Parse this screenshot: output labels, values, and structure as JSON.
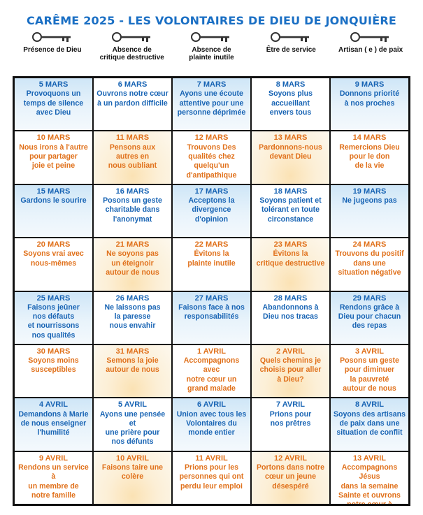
{
  "title": "CARÊME 2025 - LES VOLONTAIRES DE DIEU DE JONQUIÈRE",
  "columns": [
    {
      "label": "Présence de Dieu"
    },
    {
      "label": "Absence de\ncritique destructive"
    },
    {
      "label": "Absence de\nplainte inutile"
    },
    {
      "label": "Être  de service"
    },
    {
      "label": "Artisan ( e ) de paix"
    }
  ],
  "rows": [
    [
      {
        "date": "5 MARS",
        "text": "Provoquons un\ntemps de silence\navec Dieu"
      },
      {
        "date": "6 MARS",
        "text": "Ouvrons notre cœur\nà un pardon difficile"
      },
      {
        "date": "7 MARS",
        "text": "Ayons une écoute\nattentive pour une\npersonne déprimée"
      },
      {
        "date": "8 MARS",
        "text": "Soyons plus\naccueillant\nenvers tous"
      },
      {
        "date": "9 MARS",
        "text": "Donnons priorité\nà nos proches"
      }
    ],
    [
      {
        "date": "10 MARS",
        "text": "Nous irons à l'autre\npour partager\njoie et peine"
      },
      {
        "date": "11 MARS",
        "text": "Pensons aux\nautres en\nnous oubliant"
      },
      {
        "date": "12 MARS",
        "text": "Trouvons Des\nqualités chez\nquelqu'un\nd'antipathique"
      },
      {
        "date": "13 MARS",
        "text": "Pardonnons-nous\ndevant Dieu"
      },
      {
        "date": "14 MARS",
        "text": "Remercions Dieu\npour le don\nde la vie"
      }
    ],
    [
      {
        "date": "15 MARS",
        "text": "Gardons le sourire"
      },
      {
        "date": "16 MARS",
        "text": "Posons un geste\ncharitable dans\nl'anonymat"
      },
      {
        "date": "17 MARS",
        "text": "Acceptons la\ndivergence d'opinion"
      },
      {
        "date": "18 MARS",
        "text": "Soyons patient et\ntolérant en toute\ncirconstance"
      },
      {
        "date": "19 MARS",
        "text": "Ne jugeons pas"
      }
    ],
    [
      {
        "date": "20 MARS",
        "text": "Soyons vrai avec\nnous-mêmes"
      },
      {
        "date": "21 MARS",
        "text": "Ne soyons pas\nun éteignoir\nautour de nous"
      },
      {
        "date": "22 MARS",
        "text": "Évitons la\nplainte inutile"
      },
      {
        "date": "23 MARS",
        "text": "Évitons la\ncritique destructive"
      },
      {
        "date": "24 MARS",
        "text": "Trouvons du positif\ndans une\nsituation négative"
      }
    ],
    [
      {
        "date": "25 MARS",
        "text": "Faisons jeûner\nnos défauts\net nourrissons\nnos qualités"
      },
      {
        "date": "26 MARS",
        "text": "Ne laissons pas\nla paresse\nnous envahir"
      },
      {
        "date": "27 MARS",
        "text": "Faisons face à nos\nresponsabilités"
      },
      {
        "date": "28 MARS",
        "text": "Abandonnons à\nDieu nos tracas"
      },
      {
        "date": "29 MARS",
        "text": "Rendons grâce à\nDieu pour chacun\ndes repas"
      }
    ],
    [
      {
        "date": "30 MARS",
        "text": "Soyons moins\nsusceptibles"
      },
      {
        "date": "31 MARS",
        "text": "Semons la joie\nautour de nous"
      },
      {
        "date": "1 AVRIL",
        "text": "Accompagnons  avec\nnotre cœur un\ngrand malade"
      },
      {
        "date": "2 AVRIL",
        "text": "Quels chemins  je\nchoisis pour aller\nà Dieu?"
      },
      {
        "date": "3 AVRIL",
        "text": "Posons un geste\npour diminuer\nla pauvreté\nautour de nous"
      }
    ],
    [
      {
        "date": "4 AVRIL",
        "text": "Demandons à Marie\nde nous enseigner\nl'humilité"
      },
      {
        "date": "5 AVRIL",
        "text": "Ayons une pensée et\nune prière pour\nnos défunts"
      },
      {
        "date": "6 AVRIL",
        "text": "Union avec tous les\nVolontaires du\nmonde entier"
      },
      {
        "date": "7 AVRIL",
        "text": "Prions pour\nnos prêtres"
      },
      {
        "date": "8 AVRIL",
        "text": "Soyons des artisans\nde paix dans une\nsituation de conflit"
      }
    ],
    [
      {
        "date": "9 AVRIL",
        "text": "Rendons un service à\nun membre de\nnotre famille"
      },
      {
        "date": "10 AVRIL",
        "text": "Faisons taire une\ncolère"
      },
      {
        "date": "11 AVRIL",
        "text": "Prions pour les\npersonnes qui ont\nperdu leur emploi"
      },
      {
        "date": "12 AVRIL",
        "text": "Portons dans notre\ncœur un jeune\ndésespéré"
      },
      {
        "date": "13 AVRIL",
        "text": "Accompagnons Jésus\ndans la semaine\nSainte et ouvrons\nnotre cœur à\nla joie Pascale"
      }
    ]
  ]
}
